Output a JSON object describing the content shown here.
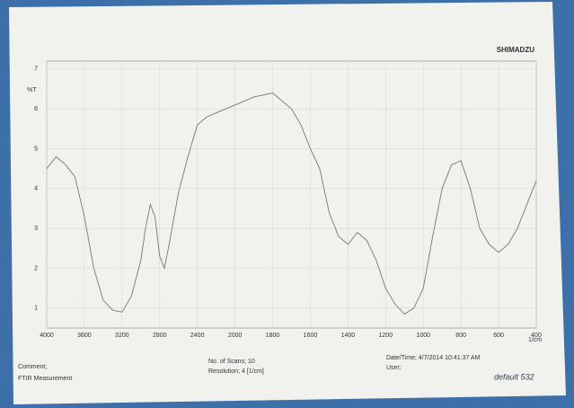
{
  "chart_data": {
    "type": "line",
    "brand": "SHIMADZU",
    "ylabel": "%T",
    "xlabel": "1/cm",
    "x": [
      4000,
      3900,
      3800,
      3700,
      3600,
      3500,
      3400,
      3300,
      3200,
      3100,
      3000,
      2950,
      2900,
      2850,
      2800,
      2750,
      2700,
      2600,
      2500,
      2400,
      2300,
      2200,
      2100,
      2000,
      1900,
      1800,
      1700,
      1650,
      1600,
      1550,
      1500,
      1450,
      1400,
      1350,
      1300,
      1250,
      1200,
      1150,
      1100,
      1050,
      1000,
      950,
      900,
      850,
      800,
      750,
      700,
      650,
      600,
      550,
      500,
      450,
      400
    ],
    "values": [
      4.5,
      4.8,
      4.6,
      4.3,
      3.3,
      2.0,
      1.2,
      0.95,
      0.9,
      1.3,
      2.2,
      3.0,
      3.6,
      3.3,
      2.3,
      2.0,
      2.6,
      3.9,
      4.8,
      5.6,
      5.8,
      5.9,
      6.0,
      6.1,
      6.3,
      6.4,
      6.0,
      5.6,
      5.0,
      4.5,
      3.4,
      2.8,
      2.6,
      2.9,
      2.7,
      2.2,
      1.5,
      1.1,
      0.85,
      1.0,
      1.5,
      2.8,
      4.0,
      4.6,
      4.7,
      4.0,
      3.0,
      2.6,
      2.4,
      2.6,
      3.0,
      3.6,
      4.2
    ],
    "color": "#777777",
    "xlim": [
      4000,
      400
    ],
    "xticks": [
      4000,
      3600,
      3200,
      2800,
      2400,
      2000,
      1800,
      1600,
      1400,
      1200,
      1000,
      800,
      600,
      400
    ],
    "ylim": [
      0.5,
      7.2
    ],
    "yticks": [
      1,
      2,
      3,
      4,
      5,
      6,
      7
    ],
    "grid": true,
    "footer": {
      "comment": "Comment;",
      "method": "FTIR Measurement",
      "scans": "No. of Scans; 10",
      "resolution": "Resolution;  4 [1/cm]",
      "datetime": "Date/Time; 4/7/2014 10:41:37 AM",
      "user": "User;",
      "handwriting": "default 532"
    }
  }
}
